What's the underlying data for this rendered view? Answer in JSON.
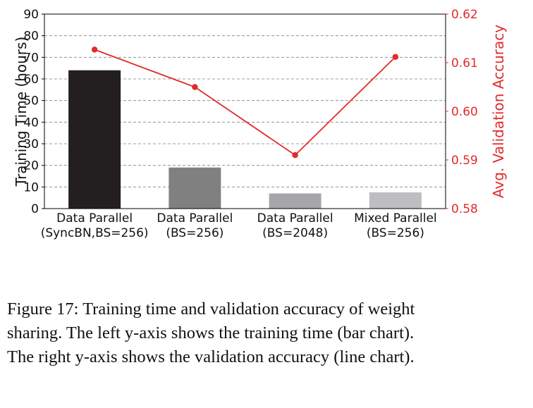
{
  "chart_data": {
    "type": "bar",
    "categories": [
      [
        "Data Parallel",
        "(SyncBN,BS=256)"
      ],
      [
        "Data Parallel",
        "(BS=256)"
      ],
      [
        "Data Parallel",
        "(BS=2048)"
      ],
      [
        "Mixed Parallel",
        "(BS=256)"
      ]
    ],
    "series": [
      {
        "type": "bar",
        "axis": "left",
        "values": [
          64,
          19,
          7,
          7.5
        ],
        "colors": [
          "#231f20",
          "#808080",
          "#a6a6a8",
          "#bebec0"
        ]
      },
      {
        "type": "line",
        "axis": "right",
        "values": [
          0.6127,
          0.605,
          0.591,
          0.6112
        ],
        "color": "#e22b2b"
      }
    ],
    "ylabel": "Training Time (hours)",
    "ylim": [
      0,
      90
    ],
    "yticks": [
      "0",
      "10",
      "20",
      "30",
      "40",
      "50",
      "60",
      "70",
      "80",
      "90"
    ],
    "ylabel_right": "Avg. Validation Accuracy",
    "ylim_right": [
      0.58,
      0.62
    ],
    "yticks_right": [
      "0.58",
      "0.59",
      "0.60",
      "0.61",
      "0.62"
    ],
    "grid": "horizontal dashed",
    "right_axis_color": "#e22b2b"
  },
  "caption": {
    "lines": [
      "Figure 17: Training time and validation accuracy of weight",
      "sharing. The left y-axis shows the training time (bar chart).",
      "The right y-axis shows the validation accuracy (line chart)."
    ]
  }
}
